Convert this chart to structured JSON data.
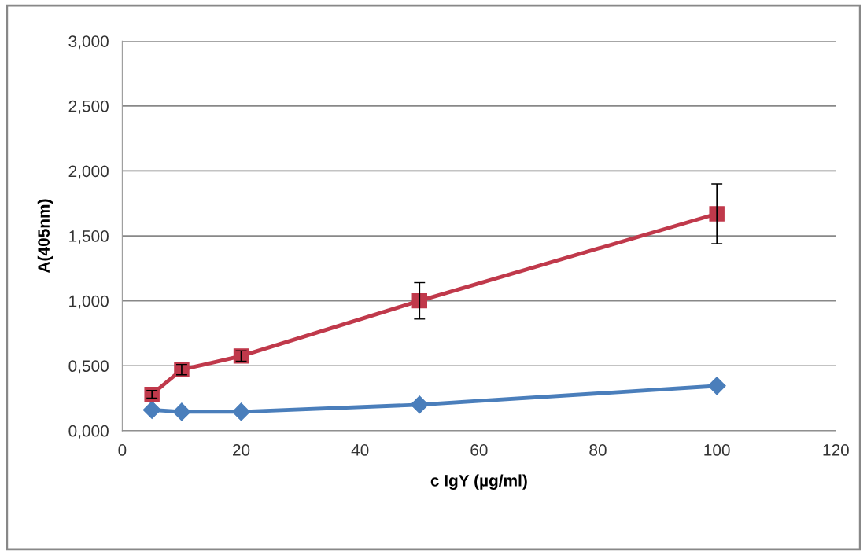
{
  "chart_data": {
    "type": "line",
    "xlabel": "c IgY (µg/ml)",
    "ylabel": "A(405nm)",
    "xlim": [
      0,
      120
    ],
    "xticks": [
      0,
      20,
      40,
      60,
      80,
      100,
      120
    ],
    "ylim": [
      0,
      3
    ],
    "yticks": [
      {
        "value": 0,
        "label": "0,000"
      },
      {
        "value": 0.5,
        "label": "0,500"
      },
      {
        "value": 1,
        "label": "1,000"
      },
      {
        "value": 1.5,
        "label": "1,500"
      },
      {
        "value": 2,
        "label": "2,000"
      },
      {
        "value": 2.5,
        "label": "2,500"
      },
      {
        "value": 3,
        "label": "3,000"
      }
    ],
    "grid": "y",
    "legend": false,
    "series": [
      {
        "color": "#4a7ebb",
        "marker": "diamond",
        "x": [
          5,
          10,
          20,
          50,
          100
        ],
        "values": [
          0.16,
          0.145,
          0.145,
          0.2,
          0.345
        ]
      },
      {
        "color": "#c0394b",
        "marker": "square",
        "x": [
          5,
          10,
          20,
          50,
          100
        ],
        "values": [
          0.28,
          0.47,
          0.575,
          1.0,
          1.67
        ],
        "errors": [
          0.03,
          0.04,
          0.04,
          0.14,
          0.23
        ]
      }
    ]
  }
}
